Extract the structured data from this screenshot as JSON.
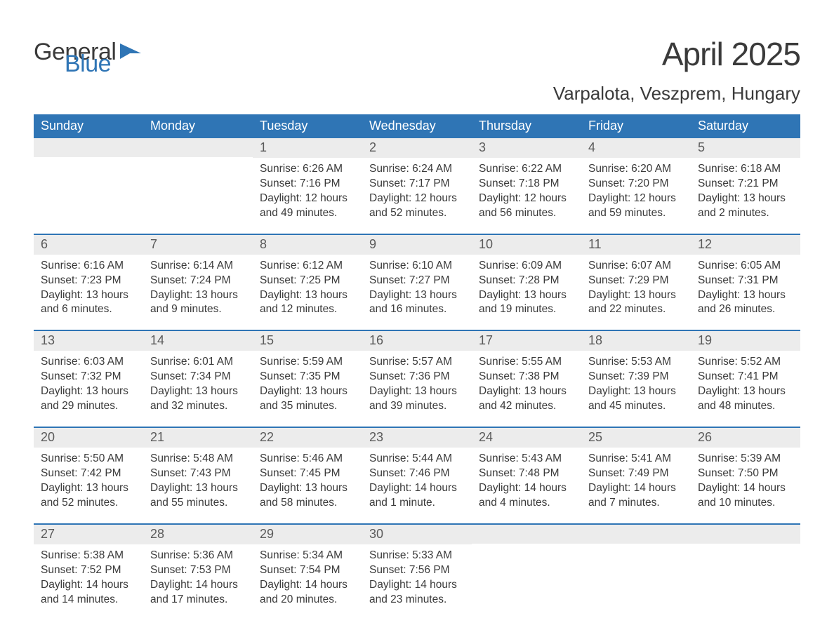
{
  "logo": {
    "text1": "General",
    "text2": "Blue",
    "flag_color": "#2f75b5"
  },
  "title": "April 2025",
  "location": "Varpalota, Veszprem, Hungary",
  "colors": {
    "header_bg": "#2f75b5",
    "header_text": "#ffffff",
    "daynum_bg": "#ececec",
    "daynum_text": "#5a5a5a",
    "body_text": "#3a3a3a",
    "week_divider": "#2f75b5",
    "background": "#ffffff"
  },
  "fonts": {
    "title_size_pt": 34,
    "location_size_pt": 20,
    "header_size_pt": 14,
    "daynum_size_pt": 14,
    "body_size_pt": 12
  },
  "day_headers": [
    "Sunday",
    "Monday",
    "Tuesday",
    "Wednesday",
    "Thursday",
    "Friday",
    "Saturday"
  ],
  "weeks": [
    [
      {
        "n": "",
        "sunrise": "",
        "sunset": "",
        "daylight": ""
      },
      {
        "n": "",
        "sunrise": "",
        "sunset": "",
        "daylight": ""
      },
      {
        "n": "1",
        "sunrise": "Sunrise: 6:26 AM",
        "sunset": "Sunset: 7:16 PM",
        "daylight": "Daylight: 12 hours and 49 minutes."
      },
      {
        "n": "2",
        "sunrise": "Sunrise: 6:24 AM",
        "sunset": "Sunset: 7:17 PM",
        "daylight": "Daylight: 12 hours and 52 minutes."
      },
      {
        "n": "3",
        "sunrise": "Sunrise: 6:22 AM",
        "sunset": "Sunset: 7:18 PM",
        "daylight": "Daylight: 12 hours and 56 minutes."
      },
      {
        "n": "4",
        "sunrise": "Sunrise: 6:20 AM",
        "sunset": "Sunset: 7:20 PM",
        "daylight": "Daylight: 12 hours and 59 minutes."
      },
      {
        "n": "5",
        "sunrise": "Sunrise: 6:18 AM",
        "sunset": "Sunset: 7:21 PM",
        "daylight": "Daylight: 13 hours and 2 minutes."
      }
    ],
    [
      {
        "n": "6",
        "sunrise": "Sunrise: 6:16 AM",
        "sunset": "Sunset: 7:23 PM",
        "daylight": "Daylight: 13 hours and 6 minutes."
      },
      {
        "n": "7",
        "sunrise": "Sunrise: 6:14 AM",
        "sunset": "Sunset: 7:24 PM",
        "daylight": "Daylight: 13 hours and 9 minutes."
      },
      {
        "n": "8",
        "sunrise": "Sunrise: 6:12 AM",
        "sunset": "Sunset: 7:25 PM",
        "daylight": "Daylight: 13 hours and 12 minutes."
      },
      {
        "n": "9",
        "sunrise": "Sunrise: 6:10 AM",
        "sunset": "Sunset: 7:27 PM",
        "daylight": "Daylight: 13 hours and 16 minutes."
      },
      {
        "n": "10",
        "sunrise": "Sunrise: 6:09 AM",
        "sunset": "Sunset: 7:28 PM",
        "daylight": "Daylight: 13 hours and 19 minutes."
      },
      {
        "n": "11",
        "sunrise": "Sunrise: 6:07 AM",
        "sunset": "Sunset: 7:29 PM",
        "daylight": "Daylight: 13 hours and 22 minutes."
      },
      {
        "n": "12",
        "sunrise": "Sunrise: 6:05 AM",
        "sunset": "Sunset: 7:31 PM",
        "daylight": "Daylight: 13 hours and 26 minutes."
      }
    ],
    [
      {
        "n": "13",
        "sunrise": "Sunrise: 6:03 AM",
        "sunset": "Sunset: 7:32 PM",
        "daylight": "Daylight: 13 hours and 29 minutes."
      },
      {
        "n": "14",
        "sunrise": "Sunrise: 6:01 AM",
        "sunset": "Sunset: 7:34 PM",
        "daylight": "Daylight: 13 hours and 32 minutes."
      },
      {
        "n": "15",
        "sunrise": "Sunrise: 5:59 AM",
        "sunset": "Sunset: 7:35 PM",
        "daylight": "Daylight: 13 hours and 35 minutes."
      },
      {
        "n": "16",
        "sunrise": "Sunrise: 5:57 AM",
        "sunset": "Sunset: 7:36 PM",
        "daylight": "Daylight: 13 hours and 39 minutes."
      },
      {
        "n": "17",
        "sunrise": "Sunrise: 5:55 AM",
        "sunset": "Sunset: 7:38 PM",
        "daylight": "Daylight: 13 hours and 42 minutes."
      },
      {
        "n": "18",
        "sunrise": "Sunrise: 5:53 AM",
        "sunset": "Sunset: 7:39 PM",
        "daylight": "Daylight: 13 hours and 45 minutes."
      },
      {
        "n": "19",
        "sunrise": "Sunrise: 5:52 AM",
        "sunset": "Sunset: 7:41 PM",
        "daylight": "Daylight: 13 hours and 48 minutes."
      }
    ],
    [
      {
        "n": "20",
        "sunrise": "Sunrise: 5:50 AM",
        "sunset": "Sunset: 7:42 PM",
        "daylight": "Daylight: 13 hours and 52 minutes."
      },
      {
        "n": "21",
        "sunrise": "Sunrise: 5:48 AM",
        "sunset": "Sunset: 7:43 PM",
        "daylight": "Daylight: 13 hours and 55 minutes."
      },
      {
        "n": "22",
        "sunrise": "Sunrise: 5:46 AM",
        "sunset": "Sunset: 7:45 PM",
        "daylight": "Daylight: 13 hours and 58 minutes."
      },
      {
        "n": "23",
        "sunrise": "Sunrise: 5:44 AM",
        "sunset": "Sunset: 7:46 PM",
        "daylight": "Daylight: 14 hours and 1 minute."
      },
      {
        "n": "24",
        "sunrise": "Sunrise: 5:43 AM",
        "sunset": "Sunset: 7:48 PM",
        "daylight": "Daylight: 14 hours and 4 minutes."
      },
      {
        "n": "25",
        "sunrise": "Sunrise: 5:41 AM",
        "sunset": "Sunset: 7:49 PM",
        "daylight": "Daylight: 14 hours and 7 minutes."
      },
      {
        "n": "26",
        "sunrise": "Sunrise: 5:39 AM",
        "sunset": "Sunset: 7:50 PM",
        "daylight": "Daylight: 14 hours and 10 minutes."
      }
    ],
    [
      {
        "n": "27",
        "sunrise": "Sunrise: 5:38 AM",
        "sunset": "Sunset: 7:52 PM",
        "daylight": "Daylight: 14 hours and 14 minutes."
      },
      {
        "n": "28",
        "sunrise": "Sunrise: 5:36 AM",
        "sunset": "Sunset: 7:53 PM",
        "daylight": "Daylight: 14 hours and 17 minutes."
      },
      {
        "n": "29",
        "sunrise": "Sunrise: 5:34 AM",
        "sunset": "Sunset: 7:54 PM",
        "daylight": "Daylight: 14 hours and 20 minutes."
      },
      {
        "n": "30",
        "sunrise": "Sunrise: 5:33 AM",
        "sunset": "Sunset: 7:56 PM",
        "daylight": "Daylight: 14 hours and 23 minutes."
      },
      {
        "n": "",
        "sunrise": "",
        "sunset": "",
        "daylight": ""
      },
      {
        "n": "",
        "sunrise": "",
        "sunset": "",
        "daylight": ""
      },
      {
        "n": "",
        "sunrise": "",
        "sunset": "",
        "daylight": ""
      }
    ]
  ]
}
